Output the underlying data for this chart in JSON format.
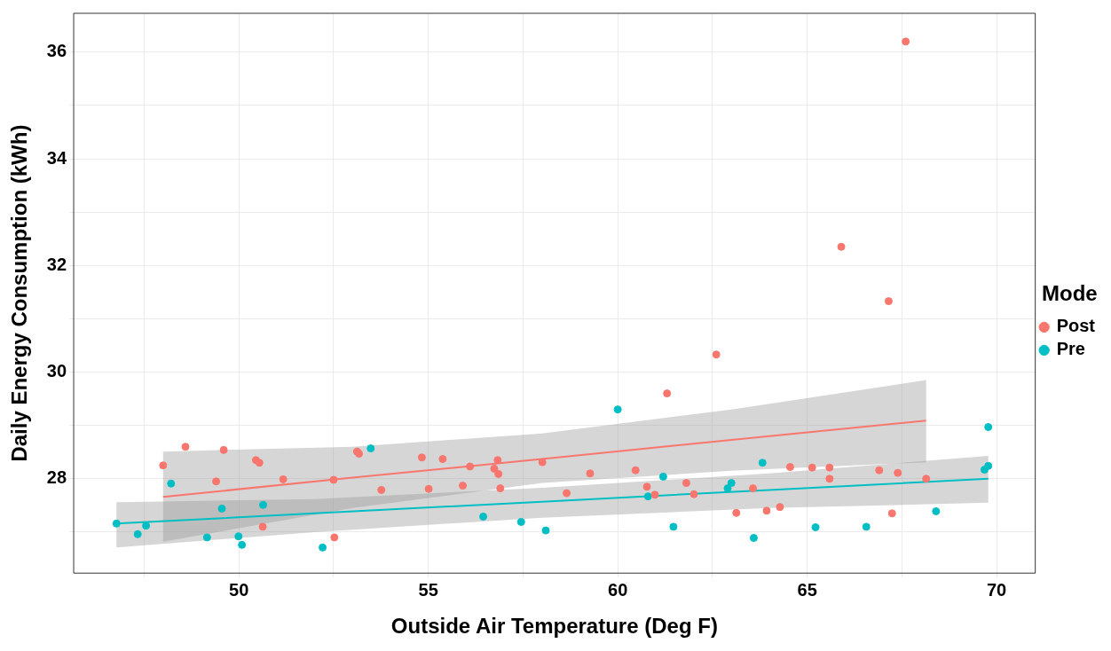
{
  "chart_data": {
    "type": "scatter",
    "xlabel": "Outside Air Temperature (Deg F)",
    "ylabel": "Daily Energy Consumption (kWh)",
    "legend_title": "Mode",
    "legend": "right",
    "grid": true,
    "marker": "circle",
    "xlim": [
      45.64,
      71.02
    ],
    "ylim": [
      26.23,
      36.73
    ],
    "xticks": [
      {
        "value": 47.5,
        "label": null
      },
      50,
      {
        "value": 52.5,
        "label": null
      },
      55,
      {
        "value": 57.5,
        "label": null
      },
      60,
      {
        "value": 62.5,
        "label": null
      },
      65,
      {
        "value": 67.5,
        "label": null
      },
      70
    ],
    "yticks": [
      {
        "value": 27,
        "label": null
      },
      28,
      {
        "value": 29,
        "label": null
      },
      30,
      {
        "value": 31,
        "label": null
      },
      32,
      {
        "value": 33,
        "label": null
      },
      34,
      {
        "value": 35,
        "label": null
      },
      36
    ],
    "series": [
      {
        "name": "Post",
        "color": "#f8766d",
        "x": [
          67.6,
          65.9,
          67.15,
          62.6,
          61.3,
          48.0,
          48.59,
          49.4,
          49.6,
          50.45,
          50.54,
          51.17,
          50.63,
          52.5,
          52.52,
          53.12,
          53.17,
          53.76,
          54.83,
          55.38,
          55.01,
          56.1,
          55.91,
          56.83,
          56.74,
          56.85,
          56.9,
          58.01,
          58.65,
          59.27,
          60.47,
          60.77,
          60.98,
          61.81,
          62.01,
          63.13,
          63.57,
          63.93,
          64.28,
          64.55,
          65.13,
          65.59,
          65.59,
          66.9,
          67.39,
          67.24,
          68.14
        ],
        "values": [
          36.2,
          32.35,
          31.33,
          30.33,
          29.6,
          28.25,
          28.6,
          27.95,
          28.54,
          28.35,
          28.3,
          27.99,
          27.1,
          27.98,
          26.9,
          28.51,
          28.47,
          27.79,
          28.4,
          28.37,
          27.81,
          28.23,
          27.87,
          28.35,
          28.19,
          28.09,
          27.82,
          28.31,
          27.73,
          28.1,
          28.16,
          27.85,
          27.7,
          27.92,
          27.71,
          27.36,
          27.82,
          27.4,
          27.47,
          28.22,
          28.21,
          28.21,
          28.0,
          28.16,
          28.11,
          27.35,
          28.0
        ]
      },
      {
        "name": "Pre",
        "color": "#00bfc4",
        "x": [
          60.0,
          46.77,
          47.33,
          47.55,
          48.21,
          49.55,
          49.16,
          49.99,
          50.08,
          50.64,
          52.21,
          53.48,
          56.45,
          57.45,
          58.1,
          60.8,
          61.2,
          61.47,
          62.9,
          63.0,
          63.82,
          63.59,
          65.22,
          66.56,
          68.4,
          69.68,
          69.78,
          69.78
        ],
        "values": [
          29.3,
          27.16,
          26.96,
          27.12,
          27.91,
          27.44,
          26.9,
          26.92,
          26.76,
          27.51,
          26.71,
          28.57,
          27.29,
          27.19,
          27.03,
          27.67,
          28.04,
          27.1,
          27.82,
          27.92,
          28.3,
          26.89,
          27.09,
          27.1,
          27.39,
          28.17,
          28.24,
          28.97
        ]
      },
      {
        "type": "line",
        "marker": "none",
        "color": "#f8766d",
        "x": [
          48.0,
          53.0,
          58.0,
          63.0,
          68.14
        ],
        "values": [
          27.66,
          28.02,
          28.37,
          28.73,
          29.09
        ],
        "lower": [
          26.82,
          27.45,
          27.92,
          28.15,
          28.31
        ],
        "upper": [
          28.51,
          28.6,
          28.85,
          29.3,
          29.85
        ]
      },
      {
        "type": "line",
        "marker": "none",
        "color": "#00bfc4",
        "x": [
          46.77,
          52.0,
          58.0,
          64.0,
          69.78
        ],
        "values": [
          27.16,
          27.35,
          27.57,
          27.79,
          28.0
        ],
        "lower": [
          26.71,
          27.0,
          27.27,
          27.45,
          27.55
        ],
        "upper": [
          27.56,
          27.62,
          27.83,
          28.1,
          28.43
        ]
      }
    ]
  }
}
